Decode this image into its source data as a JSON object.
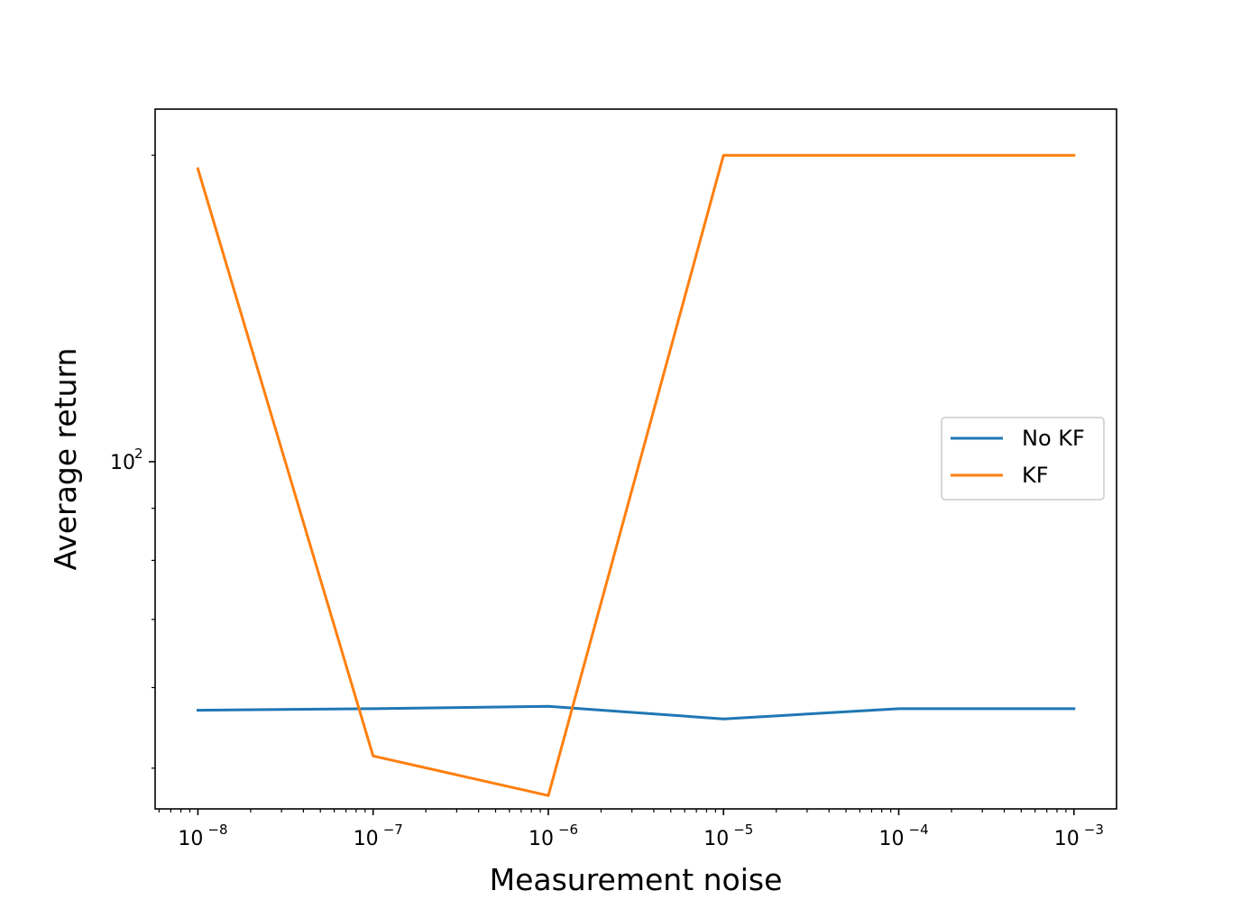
{
  "chart_data": {
    "type": "line",
    "x_scale": "log",
    "y_scale": "log",
    "xlabel": "Measurement noise",
    "ylabel": "Average return",
    "x": [
      1e-08,
      1e-07,
      1e-06,
      1e-05,
      0.0001,
      0.001
    ],
    "x_ticks": [
      {
        "value": 1e-08,
        "base": "10",
        "exp": "−8"
      },
      {
        "value": 1e-07,
        "base": "10",
        "exp": "−7"
      },
      {
        "value": 1e-06,
        "base": "10",
        "exp": "−6"
      },
      {
        "value": 1e-05,
        "base": "10",
        "exp": "−5"
      },
      {
        "value": 0.0001,
        "base": "10",
        "exp": "−4"
      },
      {
        "value": 0.001,
        "base": "10",
        "exp": "−3"
      }
    ],
    "y_ticks": [
      {
        "value": 100,
        "base": "10",
        "exp": "2"
      }
    ],
    "xlim": [
      5.7e-09,
      0.00175
    ],
    "ylim": [
      45.6,
      222
    ],
    "series": [
      {
        "name": "No KF",
        "color": "#1f77b4",
        "values": [
          57.0,
          57.2,
          57.5,
          55.9,
          57.2,
          57.2
        ]
      },
      {
        "name": "KF",
        "color": "#ff7f0e",
        "values": [
          194,
          51.4,
          47.0,
          200,
          200,
          200
        ]
      }
    ],
    "grid": false,
    "legend_position": "center-right"
  }
}
